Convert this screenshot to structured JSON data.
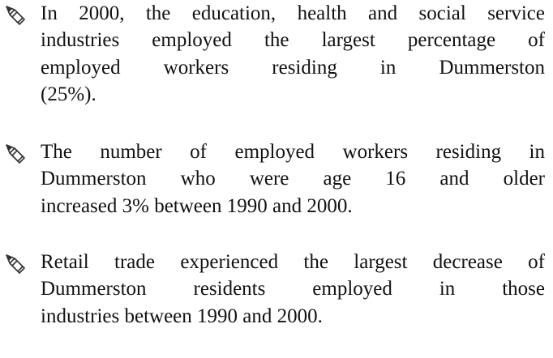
{
  "bullets": [
    {
      "lines": [
        "In 2000, the education, health and social service",
        "industries employed the largest percentage of",
        "employed workers residing in Dummerston",
        "(25%)."
      ]
    },
    {
      "lines": [
        "The number of employed workers residing in",
        "Dummerston who were age 16 and older",
        "increased 3% between 1990 and 2000."
      ]
    },
    {
      "lines": [
        "Retail trade experienced the largest decrease of",
        "Dummerston residents employed in those",
        "industries between 1990 and 2000."
      ]
    }
  ]
}
